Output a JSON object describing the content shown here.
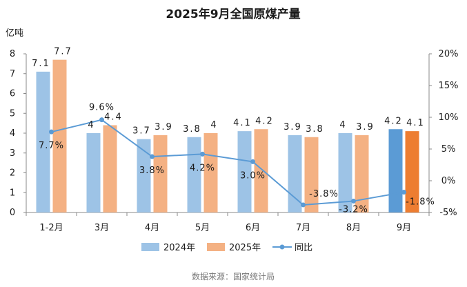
{
  "chart_data": {
    "type": "bar",
    "title": "2025年9月全国原煤产量",
    "ylabel": "亿吨",
    "ylim": [
      0,
      8
    ],
    "y2lim": [
      -5,
      20
    ],
    "y_ticks": [
      "0",
      "1",
      "2",
      "3",
      "4",
      "5",
      "6",
      "7",
      "8"
    ],
    "y2_ticks": [
      "-5%",
      "0%",
      "5%",
      "10%",
      "15%",
      "20%"
    ],
    "categories": [
      "1-2月",
      "3月",
      "4月",
      "5月",
      "6月",
      "7月",
      "8月",
      "9月"
    ],
    "series": [
      {
        "name": "2024年",
        "type": "bar",
        "color": "#9dc3e6",
        "highlight_color": "#5b9bd5",
        "values": [
          7.1,
          4,
          3.7,
          3.8,
          4.1,
          3.9,
          4,
          4.2
        ],
        "labels": [
          "7.1",
          "4",
          "3.7",
          "3.8",
          "4.1",
          "3.9",
          "4",
          "4.2"
        ]
      },
      {
        "name": "2025年",
        "type": "bar",
        "color": "#f4b183",
        "highlight_color": "#ed7d31",
        "values": [
          7.7,
          4.4,
          3.9,
          4,
          4.2,
          3.8,
          3.9,
          4.1
        ],
        "labels": [
          "7.7",
          "4.4",
          "3.9",
          "4",
          "4.2",
          "3.8",
          "3.9",
          "4.1"
        ]
      },
      {
        "name": "同比",
        "type": "line",
        "axis": "right",
        "color": "#5b9bd5",
        "values": [
          7.7,
          9.6,
          3.8,
          4.2,
          3.0,
          -3.8,
          -3.2,
          -1.8
        ],
        "labels": [
          "7.7%",
          "9.6%",
          "3.8%",
          "4.2%",
          "3.0%",
          "-3.8%",
          "-3.2%",
          "-1.8%"
        ]
      }
    ],
    "highlight_category_index": 7,
    "source": "数据来源：国家统计局"
  }
}
